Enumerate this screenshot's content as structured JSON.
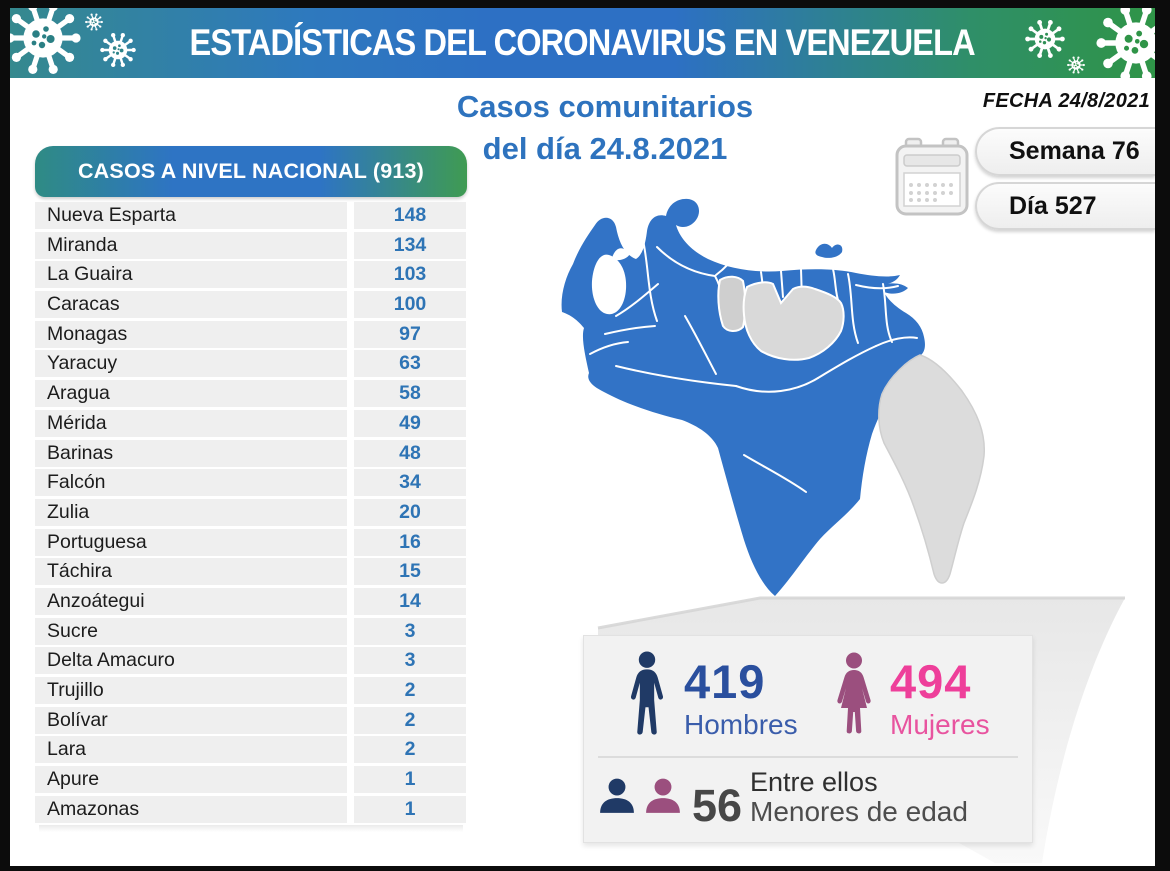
{
  "banner": {
    "title": "ESTADÍSTICAS DEL CORONAVIRUS EN VENEZUELA"
  },
  "header": {
    "title_line1": "Casos comunitarios",
    "title_line2": "del día 24.8.2021",
    "fecha": "FECHA 24/8/2021",
    "semana": "Semana 76",
    "dia": "Día 527"
  },
  "table": {
    "header": "CASOS A NIVEL NACIONAL (913)",
    "rows": [
      {
        "state": "Nueva Esparta",
        "cases": "148"
      },
      {
        "state": "Miranda",
        "cases": "134"
      },
      {
        "state": "La Guaira",
        "cases": "103"
      },
      {
        "state": "Caracas",
        "cases": "100"
      },
      {
        "state": "Monagas",
        "cases": "97"
      },
      {
        "state": "Yaracuy",
        "cases": "63"
      },
      {
        "state": "Aragua",
        "cases": "58"
      },
      {
        "state": "Mérida",
        "cases": "49"
      },
      {
        "state": "Barinas",
        "cases": "48"
      },
      {
        "state": "Falcón",
        "cases": "34"
      },
      {
        "state": "Zulia",
        "cases": "20"
      },
      {
        "state": "Portuguesa",
        "cases": "16"
      },
      {
        "state": "Táchira",
        "cases": "15"
      },
      {
        "state": "Anzoátegui",
        "cases": "14"
      },
      {
        "state": "Sucre",
        "cases": "3"
      },
      {
        "state": "Delta Amacuro",
        "cases": "3"
      },
      {
        "state": "Trujillo",
        "cases": "2"
      },
      {
        "state": "Bolívar",
        "cases": "2"
      },
      {
        "state": "Lara",
        "cases": "2"
      },
      {
        "state": "Apure",
        "cases": "1"
      },
      {
        "state": "Amazonas",
        "cases": "1"
      }
    ]
  },
  "stats": {
    "hombres_value": "419",
    "hombres_label": "Hombres",
    "mujeres_value": "494",
    "mujeres_label": "Mujeres",
    "minors_value": "56",
    "minors_line1": "Entre ellos",
    "minors_line2": "Menores de edad"
  },
  "colors": {
    "banner_teal": "#35898e",
    "banner_blue": "#2d70c4",
    "banner_green": "#2f9447",
    "title_blue": "#2e73be",
    "number_blue": "#2e74b5",
    "map_active_blue": "#3273c6",
    "map_inactive_gray": "#d7d7d7",
    "hombres_navy": "#203a66",
    "hombres_blue": "#2a4f9e",
    "mujeres_pink": "#ee3f9a",
    "mujeres_purple": "#9b4f7e",
    "minors_gray": "#474747"
  },
  "chart_data": {
    "type": "table",
    "title": "Casos comunitarios del día 24.8.2021",
    "subtitle": "ESTADÍSTICAS DEL CORONAVIRUS EN VENEZUELA",
    "date": "24/8/2021",
    "week": 76,
    "day": 527,
    "total_label": "CASOS A NIVEL NACIONAL (913)",
    "total": 913,
    "categories": [
      "Nueva Esparta",
      "Miranda",
      "La Guaira",
      "Caracas",
      "Monagas",
      "Yaracuy",
      "Aragua",
      "Mérida",
      "Barinas",
      "Falcón",
      "Zulia",
      "Portuguesa",
      "Táchira",
      "Anzoátegui",
      "Sucre",
      "Delta Amacuro",
      "Trujillo",
      "Bolívar",
      "Lara",
      "Apure",
      "Amazonas"
    ],
    "values": [
      148,
      134,
      103,
      100,
      97,
      63,
      58,
      49,
      48,
      34,
      20,
      16,
      15,
      14,
      3,
      3,
      2,
      2,
      2,
      1,
      1
    ],
    "demographics": {
      "hombres": 419,
      "mujeres": 494,
      "menores_de_edad": 56
    }
  }
}
